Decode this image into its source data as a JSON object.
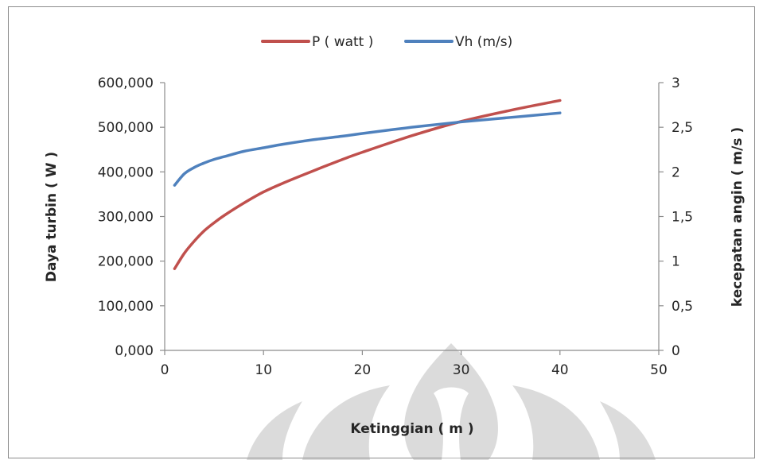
{
  "chart_data": {
    "type": "line",
    "title": "",
    "xlabel": "Ketinggian ( m )",
    "ylabel": "Daya turbin ( W )",
    "ylabel_right": "kecepatan angin ( m/s )",
    "xlim": [
      0,
      50
    ],
    "ylim": [
      0,
      600
    ],
    "ylim_right": [
      0,
      3
    ],
    "x_ticks": [
      0,
      10,
      20,
      30,
      40,
      50
    ],
    "x_tick_labels": [
      "0",
      "10",
      "20",
      "30",
      "40",
      "50"
    ],
    "y_ticks": [
      0,
      100,
      200,
      300,
      400,
      500,
      600
    ],
    "y_tick_labels": [
      "0,000",
      "100,000",
      "200,000",
      "300,000",
      "400,000",
      "500,000",
      "600,000"
    ],
    "y_right_ticks": [
      0,
      0.5,
      1,
      1.5,
      2,
      2.5,
      3
    ],
    "y_right_tick_labels": [
      "0",
      "0,5",
      "1",
      "1,5",
      "2",
      "2,5",
      "3"
    ],
    "grid": false,
    "legend_position": "top-center",
    "series": [
      {
        "name": "P ( watt )",
        "axis": "left",
        "color": "#c0504d",
        "x": [
          1,
          2,
          3,
          4,
          5,
          6,
          8,
          10,
          12,
          15,
          18,
          20,
          25,
          30,
          35,
          40
        ],
        "y": [
          183,
          218,
          245,
          268,
          286,
          302,
          330,
          355,
          375,
          402,
          428,
          444,
          481,
          513,
          538,
          560
        ]
      },
      {
        "name": "Vh (m/s)",
        "axis": "right",
        "color": "#4f81bd",
        "x": [
          1,
          2,
          3,
          4,
          5,
          6,
          8,
          10,
          12,
          15,
          18,
          20,
          25,
          30,
          35,
          40
        ],
        "y": [
          1.85,
          1.98,
          2.05,
          2.1,
          2.14,
          2.17,
          2.23,
          2.27,
          2.31,
          2.36,
          2.4,
          2.43,
          2.5,
          2.56,
          2.61,
          2.66
        ]
      }
    ]
  }
}
